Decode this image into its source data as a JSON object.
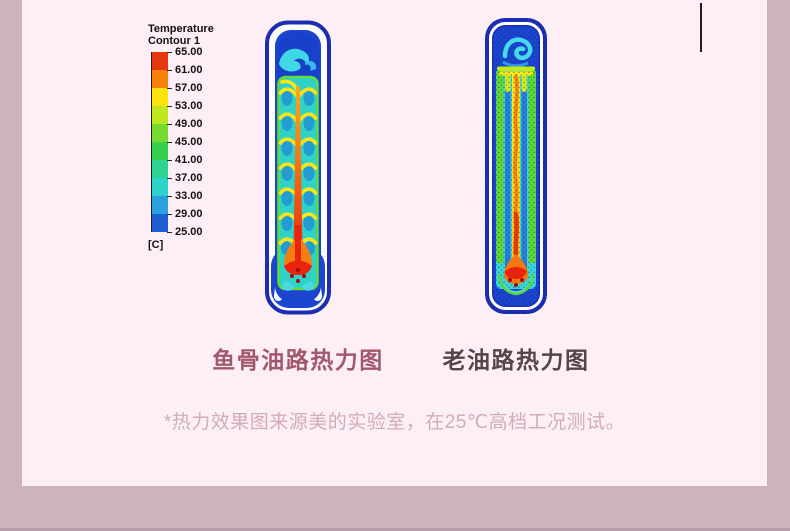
{
  "canvas": {
    "page_bg": "#fdeff5",
    "gutter_color": "#ccb3bc",
    "divider_color": "#30171c"
  },
  "legend": {
    "title": "Temperature",
    "subtitle": "Contour 1",
    "unit": "[C]",
    "tick_labels": [
      "65.00",
      "61.00",
      "57.00",
      "53.00",
      "49.00",
      "45.00",
      "41.00",
      "37.00",
      "33.00",
      "29.00",
      "25.00"
    ],
    "segment_colors": [
      "#e6380e",
      "#f6820c",
      "#fbe30b",
      "#bfe71d",
      "#77da31",
      "#35d14c",
      "#2dd492",
      "#2cd2cc",
      "#2b9fdf",
      "#1f5ed2"
    ]
  },
  "figures": [
    {
      "caption": "鱼骨油路热力图"
    },
    {
      "caption": "老油路热力图"
    }
  ],
  "footnote": "*热力效果图来源美的实验室，在25℃高档工况测试。"
}
